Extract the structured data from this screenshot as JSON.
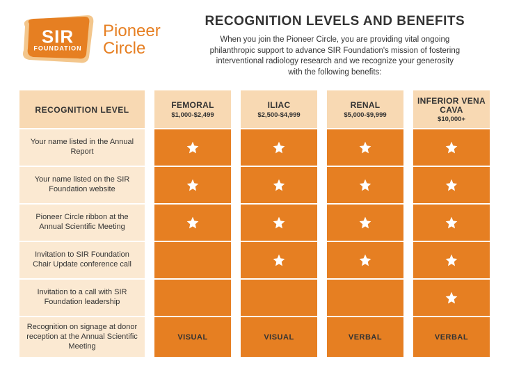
{
  "colors": {
    "brand_orange": "#e67f22",
    "header_tint": "#f8d9b3",
    "row_tint": "#fbe9d2",
    "text": "#333333",
    "background": "#ffffff",
    "logo_bg_tint": "#f3c68c",
    "star_fill": "#ffffff"
  },
  "logo": {
    "sir": "SIR",
    "foundation": "FOUNDATION",
    "program_line1": "Pioneer",
    "program_line2": "Circle"
  },
  "title": "RECOGNITION LEVELS AND BENEFITS",
  "intro": "When you join the Pioneer Circle, you are providing vital ongoing philanthropic support to advance SIR Foundation's mission of fostering interventional radiology research and we recognize your generosity with the following benefits:",
  "table": {
    "label_header": "RECOGNITION LEVEL",
    "tiers": [
      {
        "name": "FEMORAL",
        "range": "$1,000-$2,499"
      },
      {
        "name": "ILIAC",
        "range": "$2,500-$4,999"
      },
      {
        "name": "RENAL",
        "range": "$5,000-$9,999"
      },
      {
        "name": "INFERIOR VENA CAVA",
        "range": "$10,000+"
      }
    ],
    "rows": [
      {
        "label": "Your name listed in the Annual Report",
        "values": [
          "star",
          "star",
          "star",
          "star"
        ]
      },
      {
        "label": "Your name listed on the SIR Foundation website",
        "values": [
          "star",
          "star",
          "star",
          "star"
        ]
      },
      {
        "label": "Pioneer Circle ribbon at the Annual Scientific Meeting",
        "values": [
          "star",
          "star",
          "star",
          "star"
        ]
      },
      {
        "label": "Invitation to SIR Foundation Chair Update conference call",
        "values": [
          "",
          "star",
          "star",
          "star"
        ]
      },
      {
        "label": "Invitation to a call with SIR Foundation leadership",
        "values": [
          "",
          "",
          "",
          "star"
        ]
      },
      {
        "label": "Recognition on signage at donor reception at the Annual Scientific Meeting",
        "values": [
          "VISUAL",
          "VISUAL",
          "VERBAL",
          "VERBAL"
        ]
      }
    ]
  }
}
